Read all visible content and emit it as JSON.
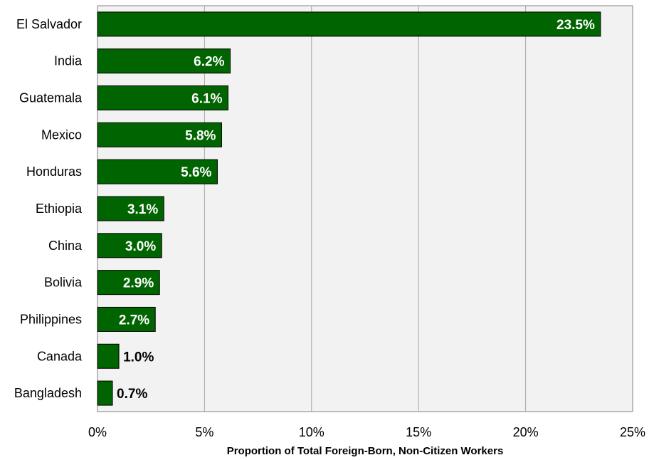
{
  "chart_data": {
    "type": "bar",
    "orientation": "horizontal",
    "categories": [
      "El Salvador",
      "India",
      "Guatemala",
      "Mexico",
      "Honduras",
      "Ethiopia",
      "China",
      "Bolivia",
      "Philippines",
      "Canada",
      "Bangladesh"
    ],
    "values": [
      23.5,
      6.2,
      6.1,
      5.8,
      5.6,
      3.1,
      3.0,
      2.9,
      2.7,
      1.0,
      0.7
    ],
    "data_labels": [
      "23.5%",
      "6.2%",
      "6.1%",
      "5.8%",
      "5.6%",
      "3.1%",
      "3.0%",
      "2.9%",
      "2.7%",
      "1.0%",
      "0.7%"
    ],
    "xlabel": "Proportion of Total Foreign-Born, Non-Citizen Workers",
    "xlim": [
      0,
      25
    ],
    "xticks": [
      0,
      5,
      10,
      15,
      20,
      25
    ],
    "xtick_labels": [
      "0%",
      "5%",
      "10%",
      "15%",
      "20%",
      "25%"
    ],
    "grid": "vertical",
    "legend": "none",
    "colors": {
      "bar": "#006400",
      "bar_edge": "#000000",
      "plot_background": "#f2f2f2",
      "gridline": "#a6a6a6",
      "label_inside": "#ffffff",
      "label_outside": "#000000"
    }
  }
}
